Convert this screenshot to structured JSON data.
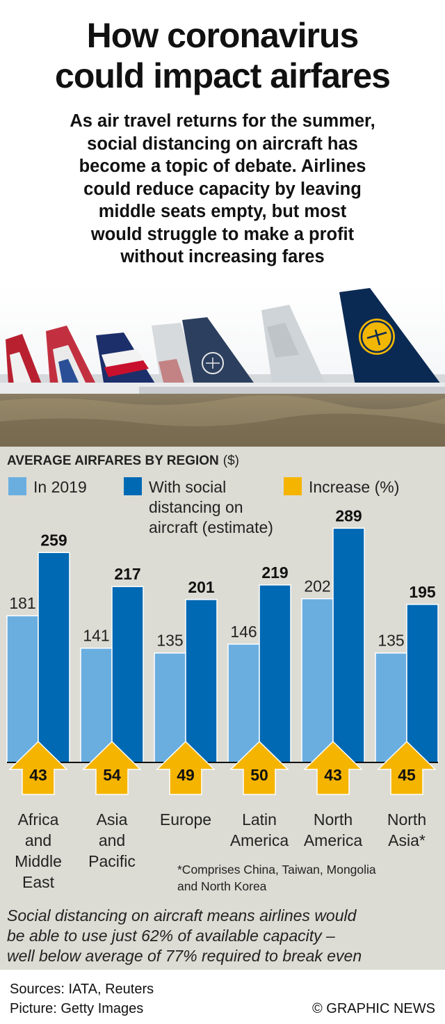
{
  "header": {
    "title": "How coronavirus\ncould impact airfares",
    "subtitle": "As air travel returns for the summer,\nsocial distancing on aircraft has\nbecome a topic of debate. Airlines\ncould reduce capacity by leaving\nmiddle seats empty, but most\nwould struggle to make a profit\nwithout increasing fares"
  },
  "colors": {
    "in_2019": "#6aaee0",
    "social_distancing": "#0069b4",
    "increase": "#f5b400",
    "panel_bg": "#dcdcd4"
  },
  "legend": {
    "in_2019": "In 2019",
    "social_distancing": "With social\ndistancing on\naircraft (estimate)",
    "increase": "Increase (%)"
  },
  "chart_data": {
    "type": "bar",
    "title": "AVERAGE AIRFARES BY REGION",
    "unit": "($)",
    "categories": [
      "Africa\nand\nMiddle\nEast",
      "Asia\nand\nPacific",
      "Europe",
      "Latin\nAmerica",
      "North\nAmerica",
      "North\nAsia*"
    ],
    "series": [
      {
        "name": "In 2019",
        "values": [
          181,
          141,
          135,
          146,
          202,
          135
        ]
      },
      {
        "name": "With social distancing on aircraft (estimate)",
        "values": [
          259,
          217,
          201,
          219,
          289,
          195
        ]
      }
    ],
    "increase_pct": [
      43,
      54,
      49,
      50,
      43,
      45
    ],
    "ylim": [
      0,
      300
    ],
    "grid": false,
    "legend_position": "top"
  },
  "footnote": "*Comprises China, Taiwan, Mongolia\nand North Korea",
  "note": "Social distancing on aircraft means airlines would\nbe able to use just 62% of available capacity –\nwell below average of 77% required to break even",
  "footer": {
    "sources": "Sources: IATA, Reuters\nPicture: Getty Images",
    "credit": "© GRAPHIC NEWS"
  }
}
